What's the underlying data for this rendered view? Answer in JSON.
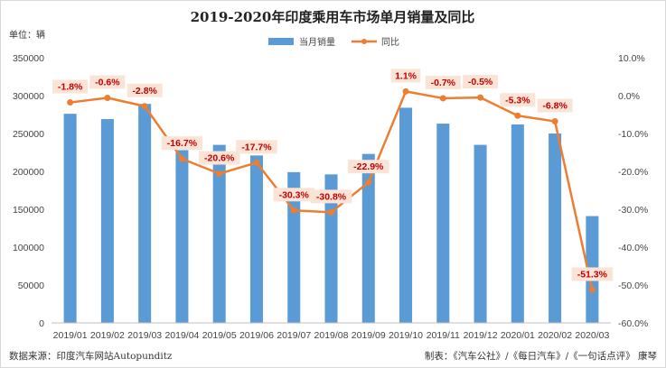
{
  "chart_data": {
    "type": "bar+line",
    "title": "2019-2020年印度乘用车市场单月销量及同比",
    "unit_label": "单位：辆",
    "categories": [
      "2019/01",
      "2019/02",
      "2019/03",
      "2019/04",
      "2019/05",
      "2019/06",
      "2019/07",
      "2019/08",
      "2019/09",
      "2019/10",
      "2019/11",
      "2019/12",
      "2020/01",
      "2020/02",
      "2020/03"
    ],
    "series": [
      {
        "name": "当月销量",
        "type": "bar",
        "axis": "left",
        "color": "#5b9bd5",
        "values": [
          276000,
          269000,
          289000,
          228000,
          235000,
          221000,
          199000,
          196000,
          223000,
          284000,
          263000,
          235000,
          262000,
          250000,
          141000
        ]
      },
      {
        "name": "同比",
        "type": "line",
        "axis": "right",
        "color": "#ed7d31",
        "values": [
          -1.8,
          -0.6,
          -2.8,
          -16.7,
          -20.6,
          -17.7,
          -30.3,
          -30.8,
          -22.9,
          1.1,
          -0.7,
          -0.5,
          -5.3,
          -6.8,
          -51.3
        ],
        "labels": [
          "-1.8%",
          "-0.6%",
          "-2.8%",
          "-16.7%",
          "-20.6%",
          "-17.7%",
          "-30.3%",
          "-30.8%",
          "-22.9%",
          "1.1%",
          "-0.7%",
          "-0.5%",
          "-5.3%",
          "-6.8%",
          "-51.3%"
        ]
      }
    ],
    "y_left": {
      "min": 0,
      "max": 350000,
      "ticks": [
        0,
        50000,
        100000,
        150000,
        200000,
        250000,
        300000,
        350000
      ],
      "tick_labels": [
        "0",
        "50000",
        "100000",
        "150000",
        "200000",
        "250000",
        "300000",
        "350000"
      ]
    },
    "y_right": {
      "min": -60,
      "max": 10,
      "ticks": [
        -60,
        -50,
        -40,
        -30,
        -20,
        -10,
        0,
        10
      ],
      "tick_labels": [
        "-60.0%",
        "-50.0%",
        "-40.0%",
        "-30.0%",
        "-20.0%",
        "-10.0%",
        "0.0%",
        "10.0%"
      ]
    },
    "legend_position": "top-center",
    "grid": false
  },
  "footer": {
    "source": "数据来源：印度汽车网站Autopunditz",
    "credit": "制表：《汽车公社》/《每日汽车》/《一句话点评》 康琴"
  }
}
